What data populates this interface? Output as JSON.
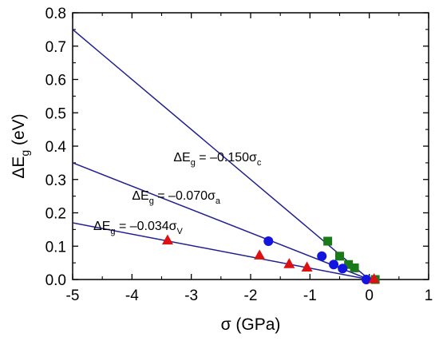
{
  "chart_data": {
    "type": "scatter",
    "x_axis": {
      "label_symbol": "σ",
      "label_unit": " (GPa)",
      "range": [
        -5,
        1
      ],
      "major_ticks": [
        -5,
        -4,
        -3,
        -2,
        -1,
        0,
        1
      ],
      "tick_labels": [
        "-5",
        "-4",
        "-3",
        "-2",
        "-1",
        "0",
        "1"
      ]
    },
    "y_axis": {
      "label_prefix": "ΔE",
      "label_sub": "g",
      "label_unit": " (eV)",
      "range": [
        0,
        0.8
      ],
      "major_ticks": [
        0,
        0.1,
        0.2,
        0.3,
        0.4,
        0.5,
        0.6,
        0.7,
        0.8
      ],
      "tick_labels": [
        "0.0",
        "0.1",
        "0.2",
        "0.3",
        "0.4",
        "0.5",
        "0.6",
        "0.7",
        "0.8"
      ]
    },
    "grid": false,
    "lines": [
      {
        "name": "c",
        "slope": -0.15,
        "color": "#1f1f8f",
        "annotation": {
          "prefix": "ΔE",
          "sub": "g",
          "mid": " = –0.150σ",
          "sigma_sub": "c",
          "x": -3.3,
          "y": 0.355
        }
      },
      {
        "name": "a",
        "slope": -0.07,
        "color": "#1f1f8f",
        "annotation": {
          "prefix": "ΔE",
          "sub": "g",
          "mid": " = –0.070σ",
          "sigma_sub": "a",
          "x": -4.0,
          "y": 0.24
        }
      },
      {
        "name": "V",
        "slope": -0.034,
        "color": "#1f1f8f",
        "annotation": {
          "prefix": "ΔE",
          "sub": "g",
          "mid": " = –0.034σ",
          "sigma_sub": "V",
          "x": -4.65,
          "y": 0.148
        }
      }
    ],
    "series": [
      {
        "marker": "square",
        "color": "#1a7a1a",
        "points": [
          [
            -0.7,
            0.115
          ],
          [
            -0.5,
            0.07
          ],
          [
            -0.35,
            0.045
          ],
          [
            -0.25,
            0.035
          ],
          [
            0.1,
            0.0
          ]
        ]
      },
      {
        "marker": "circle",
        "color": "#1414e0",
        "points": [
          [
            -1.7,
            0.115
          ],
          [
            -0.8,
            0.07
          ],
          [
            -0.6,
            0.045
          ],
          [
            -0.45,
            0.033
          ],
          [
            -0.05,
            0.0
          ]
        ]
      },
      {
        "marker": "triangle",
        "color": "#dd1111",
        "points": [
          [
            -3.4,
            0.118
          ],
          [
            -1.85,
            0.073
          ],
          [
            -1.35,
            0.047
          ],
          [
            -1.05,
            0.037
          ],
          [
            0.08,
            0.002
          ]
        ]
      }
    ]
  }
}
